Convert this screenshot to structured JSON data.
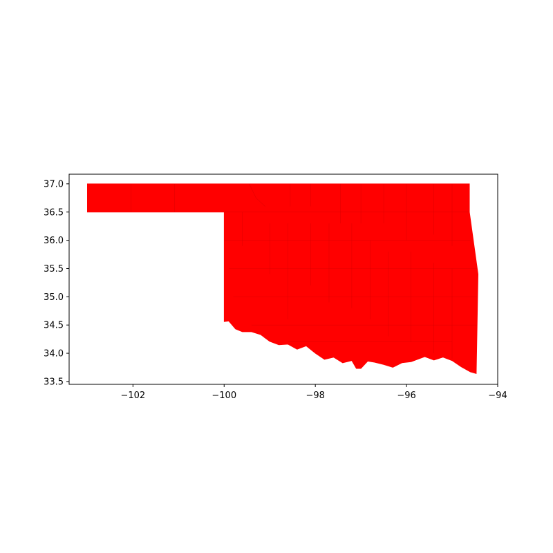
{
  "chart_data": {
    "type": "map",
    "title": "",
    "region": "Oklahoma counties",
    "fill_color": "#ff0000",
    "xlim": [
      -103.4,
      -94.0
    ],
    "ylim": [
      33.45,
      37.17
    ],
    "x_ticks": [
      {
        "value": -102,
        "label": "−102"
      },
      {
        "value": -100,
        "label": "−100"
      },
      {
        "value": -98,
        "label": "−98"
      },
      {
        "value": -96,
        "label": "−96"
      },
      {
        "value": -94,
        "label": "−94"
      }
    ],
    "y_ticks": [
      {
        "value": 37.0,
        "label": "37.0"
      },
      {
        "value": 36.5,
        "label": "36.5"
      },
      {
        "value": 36.0,
        "label": "36.0"
      },
      {
        "value": 35.5,
        "label": "35.5"
      },
      {
        "value": 35.0,
        "label": "35.0"
      },
      {
        "value": 34.5,
        "label": "34.5"
      },
      {
        "value": 34.0,
        "label": "34.0"
      },
      {
        "value": 33.5,
        "label": "33.5"
      }
    ],
    "outline": [
      [
        -103.0,
        37.0
      ],
      [
        -94.62,
        37.0
      ],
      [
        -94.62,
        36.5
      ],
      [
        -94.43,
        35.4
      ],
      [
        -94.47,
        33.64
      ],
      [
        -94.6,
        33.67
      ],
      [
        -94.8,
        33.76
      ],
      [
        -95.0,
        33.87
      ],
      [
        -95.2,
        33.93
      ],
      [
        -95.4,
        33.88
      ],
      [
        -95.6,
        33.94
      ],
      [
        -95.9,
        33.85
      ],
      [
        -96.1,
        33.83
      ],
      [
        -96.3,
        33.75
      ],
      [
        -96.5,
        33.8
      ],
      [
        -96.7,
        33.84
      ],
      [
        -96.85,
        33.86
      ],
      [
        -97.0,
        33.73
      ],
      [
        -97.1,
        33.73
      ],
      [
        -97.2,
        33.87
      ],
      [
        -97.4,
        33.83
      ],
      [
        -97.6,
        33.93
      ],
      [
        -97.8,
        33.89
      ],
      [
        -98.0,
        34.0
      ],
      [
        -98.2,
        34.13
      ],
      [
        -98.4,
        34.07
      ],
      [
        -98.6,
        34.16
      ],
      [
        -98.8,
        34.15
      ],
      [
        -99.0,
        34.21
      ],
      [
        -99.2,
        34.33
      ],
      [
        -99.4,
        34.38
      ],
      [
        -99.6,
        34.38
      ],
      [
        -99.75,
        34.43
      ],
      [
        -99.9,
        34.57
      ],
      [
        -100.0,
        34.56
      ],
      [
        -100.0,
        36.5
      ],
      [
        -103.0,
        36.5
      ]
    ],
    "county_lines": [
      [
        [
          -102.04,
          37.0
        ],
        [
          -102.04,
          36.5
        ]
      ],
      [
        [
          -101.09,
          37.0
        ],
        [
          -101.09,
          36.5
        ]
      ],
      [
        [
          -99.45,
          37.0
        ],
        [
          -99.3,
          36.75
        ],
        [
          -99.1,
          36.6
        ]
      ],
      [
        [
          -98.55,
          37.0
        ],
        [
          -98.55,
          36.6
        ]
      ],
      [
        [
          -98.1,
          37.0
        ],
        [
          -98.1,
          36.6
        ]
      ],
      [
        [
          -97.45,
          37.0
        ],
        [
          -97.45,
          36.3
        ]
      ],
      [
        [
          -97.0,
          37.0
        ],
        [
          -97.0,
          36.3
        ]
      ],
      [
        [
          -96.5,
          37.0
        ],
        [
          -96.5,
          36.3
        ]
      ],
      [
        [
          -96.0,
          37.0
        ],
        [
          -96.0,
          36.0
        ]
      ],
      [
        [
          -95.4,
          37.0
        ],
        [
          -95.4,
          36.1
        ]
      ],
      [
        [
          -95.0,
          37.0
        ],
        [
          -95.0,
          35.9
        ]
      ],
      [
        [
          -99.6,
          36.5
        ],
        [
          -99.6,
          35.9
        ]
      ],
      [
        [
          -99.0,
          36.3
        ],
        [
          -99.0,
          35.4
        ]
      ],
      [
        [
          -98.6,
          36.3
        ],
        [
          -98.6,
          34.6
        ]
      ],
      [
        [
          -98.1,
          36.3
        ],
        [
          -98.1,
          35.2
        ]
      ],
      [
        [
          -97.7,
          36.3
        ],
        [
          -97.7,
          34.9
        ]
      ],
      [
        [
          -97.2,
          36.3
        ],
        [
          -97.2,
          34.8
        ]
      ],
      [
        [
          -96.8,
          36.0
        ],
        [
          -96.8,
          34.6
        ]
      ],
      [
        [
          -96.4,
          35.8
        ],
        [
          -96.4,
          34.3
        ]
      ],
      [
        [
          -95.9,
          35.8
        ],
        [
          -95.9,
          34.2
        ]
      ],
      [
        [
          -95.4,
          35.6
        ],
        [
          -95.4,
          34.0
        ]
      ],
      [
        [
          -95.0,
          35.5
        ],
        [
          -95.0,
          33.9
        ]
      ],
      [
        [
          -100.0,
          36.5
        ],
        [
          -94.62,
          36.5
        ]
      ],
      [
        [
          -100.0,
          36.0
        ],
        [
          -94.6,
          36.0
        ]
      ],
      [
        [
          -99.9,
          35.5
        ],
        [
          -94.45,
          35.5
        ]
      ],
      [
        [
          -99.8,
          35.0
        ],
        [
          -94.45,
          35.0
        ]
      ],
      [
        [
          -99.4,
          34.5
        ],
        [
          -94.45,
          34.5
        ]
      ],
      [
        [
          -98.6,
          34.2
        ],
        [
          -95.0,
          34.2
        ]
      ]
    ]
  }
}
